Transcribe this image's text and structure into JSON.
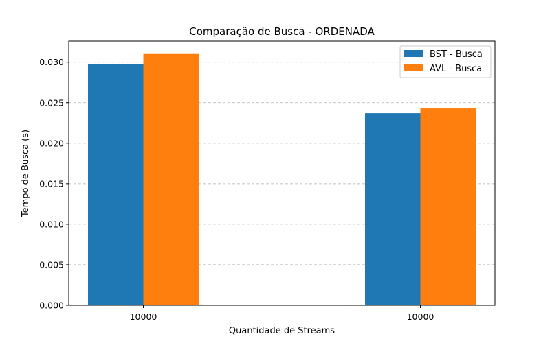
{
  "chart_data": {
    "type": "bar",
    "title": "Comparação de Busca - ORDENADA",
    "xlabel": "Quantidade de Streams",
    "ylabel": "Tempo de Busca (s)",
    "categories": [
      "10000",
      "10000"
    ],
    "series": [
      {
        "name": "BST - Busca",
        "color": "#1f77b4",
        "values": [
          0.0298,
          0.0237
        ]
      },
      {
        "name": "AVL - Busca",
        "color": "#ff7f0e",
        "values": [
          0.0311,
          0.0243
        ]
      }
    ],
    "ylim": [
      0,
      0.0326
    ],
    "yticks": [
      "0.000",
      "0.005",
      "0.010",
      "0.015",
      "0.020",
      "0.025",
      "0.030"
    ],
    "ytick_values": [
      0,
      0.005,
      0.01,
      0.015,
      0.02,
      0.025,
      0.03
    ],
    "grid": "y-dashed",
    "legend": "top-right"
  }
}
